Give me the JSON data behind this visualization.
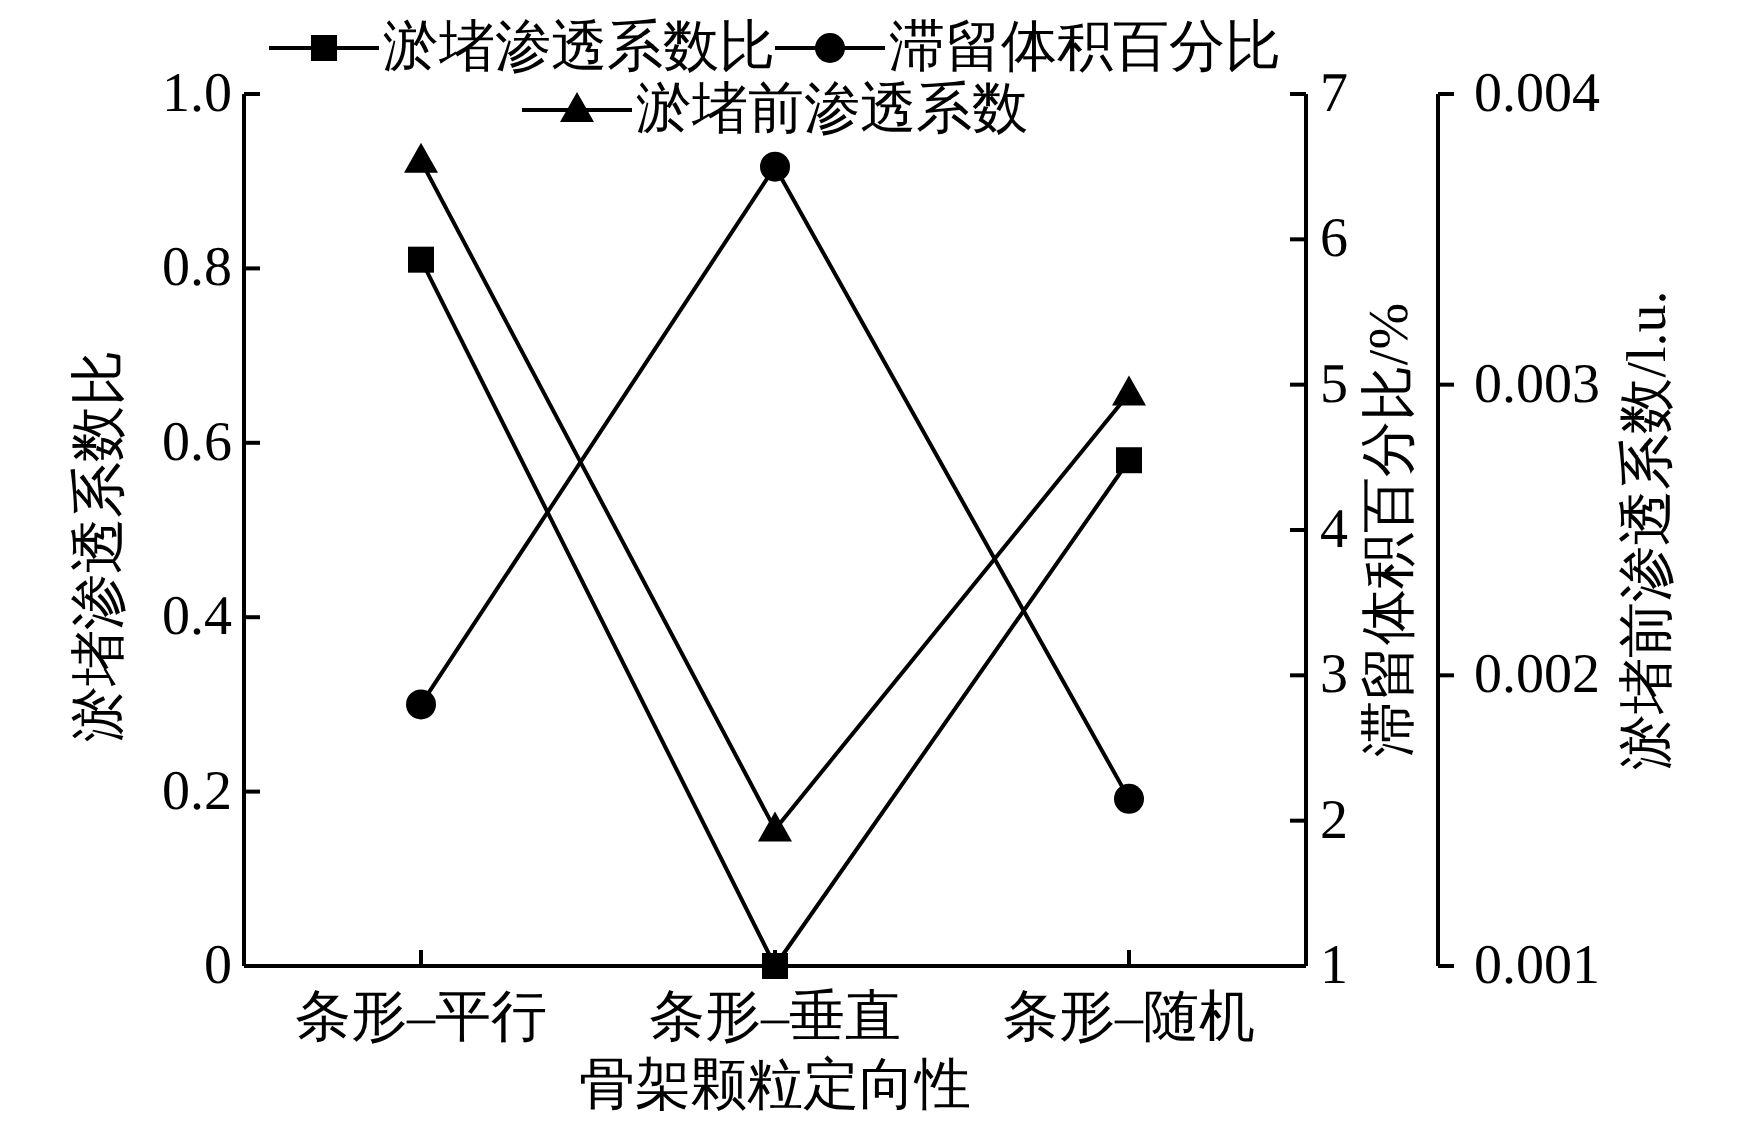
{
  "chart_data": {
    "type": "line",
    "xlabel": "骨架颗粒定向性",
    "ylabel": "淤堵渗透系数比",
    "y2label": "滞留体积百分比/%",
    "y3label": "淤堵前渗透系数/l.u.",
    "categories": [
      "条形–平行",
      "条形–垂直",
      "条形–随机"
    ],
    "series": [
      {
        "name": "淤堵渗透系数比",
        "color": "#000000",
        "marker": "square",
        "values": [
          0.81,
          0,
          0.58
        ]
      },
      {
        "name": "滞留体积百分比",
        "color": "#000000",
        "marker": "circle",
        "axis": "y2",
        "values": [
          2.8,
          6.5,
          2.15
        ]
      },
      {
        "name": "淤堵前渗透系数",
        "color": "#000000",
        "marker": "triangle",
        "axis": "y3",
        "values": [
          0.00377,
          0.00147,
          0.00297
        ]
      }
    ],
    "ylim": [
      0,
      1
    ],
    "yticks": [
      0,
      0.2,
      0.4,
      0.6,
      0.8,
      {
        "value": 1,
        "label": "1.0"
      }
    ],
    "y2lim": [
      1,
      7
    ],
    "y2ticks": [
      1,
      2,
      3,
      4,
      5,
      6,
      7
    ],
    "y3lim": [
      0.001,
      0.004
    ],
    "y3ticks": [
      0.001,
      0.002,
      0.003,
      0.004
    ],
    "legend": "top"
  }
}
